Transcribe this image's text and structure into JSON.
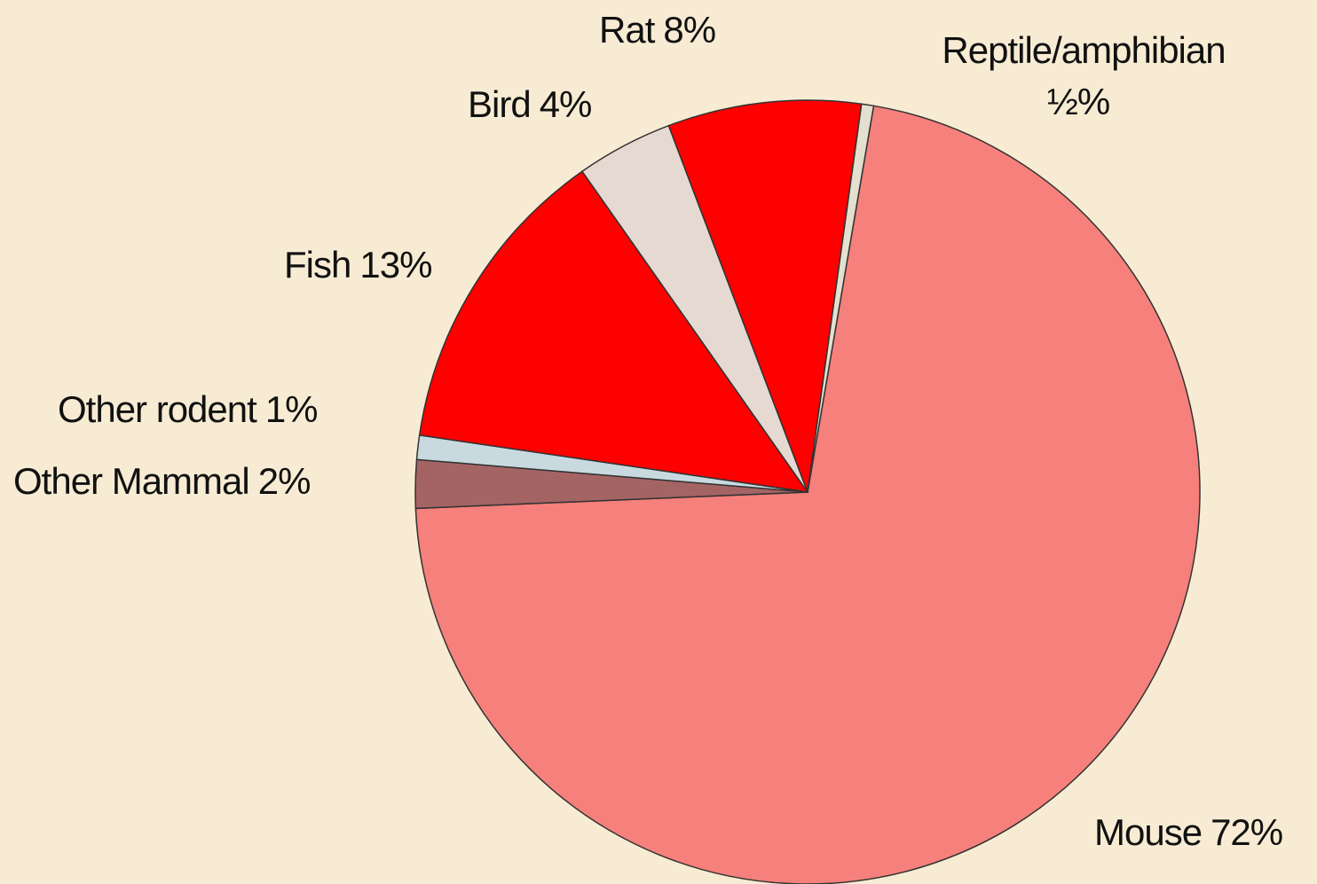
{
  "chart_data": {
    "type": "pie",
    "categories": [
      "Mouse",
      "Other Mammal",
      "Other rodent",
      "Fish",
      "Bird",
      "Rat",
      "Reptile/amphibian"
    ],
    "values": [
      72,
      2,
      1,
      13,
      4,
      8,
      0.5
    ],
    "value_labels": [
      "72%",
      "2%",
      "1%",
      "13%",
      "4%",
      "8%",
      "½%"
    ],
    "colors": [
      "#f6807b",
      "#a56464",
      "#c9d9e0",
      "#ff0000",
      "#e6d9d2",
      "#ff0000",
      "#e4e0cf"
    ]
  }
}
